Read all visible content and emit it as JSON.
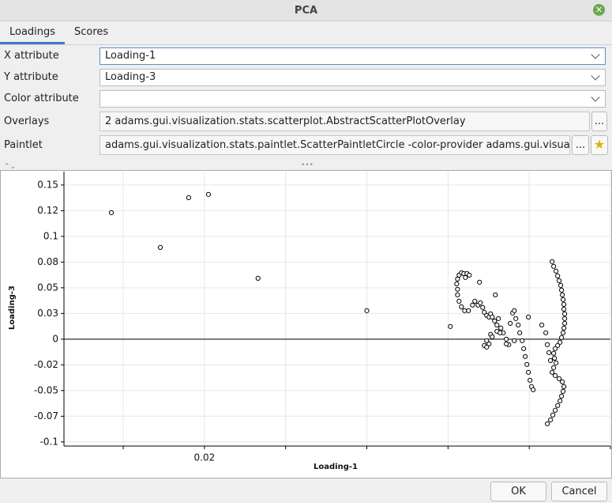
{
  "window_title": "PCA",
  "tabs": [
    {
      "label": "Loadings",
      "selected": true
    },
    {
      "label": "Scores",
      "selected": false
    }
  ],
  "form": [
    {
      "label": "X attribute",
      "value": "Loading-1",
      "kind": "combo"
    },
    {
      "label": "Y attribute",
      "value": "Loading-3",
      "kind": "combo"
    },
    {
      "label": "Color attribute",
      "kind": "combo"
    },
    {
      "label": "Overlays",
      "value": "2 adams.gui.visualization.stats.scatterplot.AbstractScatterPlotOverlay",
      "kind": "text",
      "button": "..."
    },
    {
      "label": "Paintlet",
      "value": "adams.gui.visualization.stats.paintlet.ScatterPaintletCircle -color-provider adams.gui.visualizat",
      "kind": "text",
      "button": "...",
      "star": true
    }
  ],
  "buttons": [
    "OK",
    "Cancel"
  ],
  "chart_data": {
    "type": "scatter",
    "x_label": "Loading-1",
    "y_label": "Loading-3",
    "xlim": [
      0.0027,
      0.07
    ],
    "ylim": [
      -0.104,
      0.163
    ],
    "xticks": [
      {
        "value": 0.01,
        "label": null
      },
      {
        "value": 0.02,
        "label": "0.02"
      },
      {
        "value": 0.03,
        "label": null
      },
      {
        "value": 0.04,
        "label": null
      },
      {
        "value": 0.05,
        "label": null
      },
      {
        "value": 0.06,
        "label": null
      },
      {
        "value": 0.07,
        "label": null
      }
    ],
    "yticks": [
      {
        "value": 0.15,
        "label": "0.15"
      },
      {
        "value": 0.125,
        "label": "0.12"
      },
      {
        "value": 0.1,
        "label": "0.1"
      },
      {
        "value": 0.075,
        "label": "0.08"
      },
      {
        "value": 0.05,
        "label": "0.05"
      },
      {
        "value": 0.025,
        "label": "0.03"
      },
      0,
      {
        "value": -0.025,
        "label": "-0.02"
      },
      {
        "value": -0.05,
        "label": "-0.05"
      },
      {
        "value": -0.075,
        "label": "-0.07"
      },
      {
        "value": -0.1,
        "label": "-0.1"
      }
    ],
    "grid": true,
    "zero_line": true,
    "marker_color": "#000000",
    "x": [
      0.00854,
      0.01456,
      0.01806,
      0.02049,
      0.0266,
      0.04,
      0.05029,
      0.05107,
      0.05117,
      0.05136,
      0.05165,
      0.05194,
      0.05214,
      0.05233,
      0.05262,
      0.05117,
      0.05117,
      0.05136,
      0.05165,
      0.05204,
      0.05252,
      0.05301,
      0.0533,
      0.05369,
      0.05388,
      0.05398,
      0.05427,
      0.05447,
      0.05476,
      0.05505,
      0.05524,
      0.05544,
      0.05573,
      0.05602,
      0.05621,
      0.0565,
      0.0568,
      0.05718,
      0.05748,
      0.05767,
      0.05796,
      0.05816,
      0.05835,
      0.05864,
      0.05883,
      0.05913,
      0.05932,
      0.05951,
      0.05971,
      0.0599,
      0.0601,
      0.06029,
      0.06049,
      0.05583,
      0.05524,
      0.05476,
      0.05447,
      0.05476,
      0.05505,
      0.05544,
      0.05602,
      0.05641,
      0.05718,
      0.05816,
      0.0599,
      0.06155,
      0.06204,
      0.06223,
      0.06243,
      0.06262,
      0.06282,
      0.06301,
      0.0633,
      0.0635,
      0.06369,
      0.06388,
      0.06398,
      0.06408,
      0.06417,
      0.06427,
      0.06427,
      0.06437,
      0.06437,
      0.06437,
      0.06427,
      0.06417,
      0.06398,
      0.06379,
      0.0635,
      0.0632,
      0.06301,
      0.06311,
      0.0633,
      0.06301,
      0.06282,
      0.0632,
      0.06369,
      0.06408,
      0.06427,
      0.06417,
      0.06398,
      0.06379,
      0.0635,
      0.0632,
      0.06291,
      0.06262,
      0.06223
    ],
    "values": [
      0.1231,
      0.0892,
      0.1377,
      0.1408,
      0.0592,
      0.0277,
      0.0123,
      0.0538,
      0.0585,
      0.0623,
      0.0646,
      0.0638,
      0.06,
      0.0638,
      0.0623,
      0.0485,
      0.0431,
      0.0369,
      0.0315,
      0.0277,
      0.0277,
      0.0331,
      0.0369,
      0.0331,
      0.0554,
      0.0354,
      0.0308,
      0.0262,
      0.0231,
      0.0215,
      0.0246,
      0.0215,
      0.0177,
      0.0138,
      0.02,
      0.0108,
      0.0062,
      0,
      -0.0054,
      0.0154,
      0.0254,
      0.0277,
      0.02,
      0.0138,
      0.0062,
      -0.0015,
      -0.0092,
      -0.0169,
      -0.0246,
      -0.0323,
      -0.04,
      -0.0462,
      -0.0492,
      0.0431,
      0.0046,
      -0.0015,
      -0.0062,
      -0.0077,
      -0.0046,
      0.0023,
      0.0077,
      0.0062,
      -0.0046,
      -0.0015,
      0.0215,
      0.0138,
      0.0062,
      -0.0054,
      -0.0131,
      -0.0208,
      0.0754,
      0.0708,
      0.0662,
      0.0615,
      0.0569,
      0.0523,
      0.0477,
      0.0431,
      0.0385,
      0.0338,
      0.0292,
      0.0246,
      0.02,
      0.0154,
      0.0108,
      0.0062,
      0.0015,
      -0.0031,
      -0.0062,
      -0.0092,
      -0.0138,
      -0.0185,
      -0.0231,
      -0.0277,
      -0.0323,
      -0.0354,
      -0.0385,
      -0.0415,
      -0.0462,
      -0.0508,
      -0.0554,
      -0.06,
      -0.0646,
      -0.0692,
      -0.0738,
      -0.0785,
      -0.0823
    ]
  }
}
